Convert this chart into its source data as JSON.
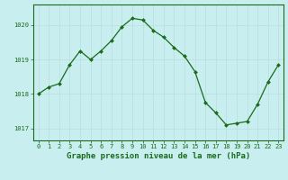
{
  "x": [
    0,
    1,
    2,
    3,
    4,
    5,
    6,
    7,
    8,
    9,
    10,
    11,
    12,
    13,
    14,
    15,
    16,
    17,
    18,
    19,
    20,
    21,
    22,
    23
  ],
  "y": [
    1018.0,
    1018.2,
    1018.3,
    1018.85,
    1019.25,
    1019.0,
    1019.25,
    1019.55,
    1019.95,
    1020.2,
    1020.15,
    1019.85,
    1019.65,
    1019.35,
    1019.1,
    1018.65,
    1017.75,
    1017.45,
    1017.1,
    1017.15,
    1017.2,
    1017.7,
    1018.35,
    1018.85
  ],
  "line_color": "#1a6b1a",
  "marker": "D",
  "markersize": 2.0,
  "linewidth": 0.9,
  "xlabel": "Graphe pression niveau de la mer (hPa)",
  "xlabel_fontsize": 6.5,
  "xlabel_color": "#1a6b1a",
  "ylabel_ticks": [
    1017,
    1018,
    1019,
    1020
  ],
  "ylim": [
    1016.65,
    1020.6
  ],
  "xlim": [
    -0.5,
    23.5
  ],
  "xtick_labels": [
    "0",
    "1",
    "2",
    "3",
    "4",
    "5",
    "6",
    "7",
    "8",
    "9",
    "10",
    "11",
    "12",
    "13",
    "14",
    "15",
    "16",
    "17",
    "18",
    "19",
    "20",
    "21",
    "22",
    "23"
  ],
  "tick_fontsize": 5.0,
  "tick_color": "#1a6b1a",
  "bg_color": "#c8eef0",
  "grid_color": "#b8dede",
  "spine_color": "#1a6b1a",
  "fig_bg": "#c8eef0"
}
